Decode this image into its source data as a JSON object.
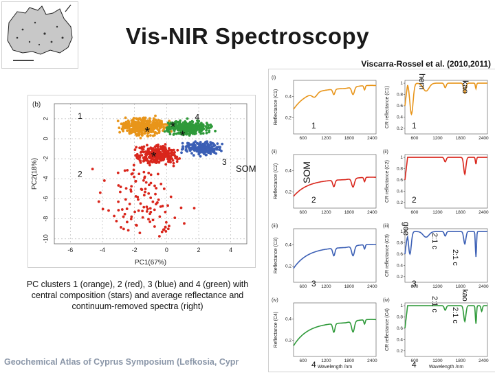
{
  "slide": {
    "title": "Vis-NIR Spectroscopy",
    "citation": "Viscarra-Rossel et al. (2010,2011)",
    "caption": "PC clusters 1 (orange), 2 (red), 3 (blue) and 4 (green) with central composition (stars) and average reflectance and continuum-removed spectra (right)",
    "footer": "Geochemical Atlas of Cyprus Symposium (Lefkosia, Cypr",
    "som_label": "SOM"
  },
  "colors": {
    "orange": "#e8951a",
    "red": "#d9261c",
    "blue": "#3b5fb5",
    "green": "#2f9a3a"
  },
  "chart_data": [
    {
      "type": "scatter",
      "panel": "(b)",
      "xlabel": "PC1(67%)",
      "ylabel": "PC2(18%)",
      "xlim": [
        -7,
        5
      ],
      "ylim": [
        -10.5,
        3.5
      ],
      "x_ticks": [
        "-6",
        "-4",
        "-2",
        "0",
        "2",
        "4"
      ],
      "y_ticks": [
        "2",
        "0",
        "-2",
        "-4",
        "-6",
        "-8",
        "-10"
      ],
      "cluster_labels": [
        "1",
        "2",
        "3",
        "4"
      ],
      "centroids": [
        [
          -1.2,
          0.7
        ],
        [
          -0.8,
          -1.8
        ],
        [
          1.0,
          0.3
        ],
        [
          0.4,
          1.2
        ]
      ]
    },
    {
      "type": "line",
      "panels": [
        "(i)",
        "(ii)",
        "(iii)",
        "(iv)"
      ],
      "left_ylabels": [
        "Reflectance (C1)",
        "Reflectance (C2)",
        "Reflectance (C3)",
        "Reflectance (C4)"
      ],
      "right_ylabels": [
        "CR reflectance (C1)",
        "CR reflectance (C2)",
        "CR reflectance (C3)",
        "CR reflectance (C4)"
      ],
      "xlabel": "Wavelength /nm",
      "x_ticks": [
        "600",
        "1200",
        "1800",
        "2400"
      ],
      "left_y_ticks": [
        "0.2",
        "0.4"
      ],
      "right_y_ticks": [
        "0.2",
        "0.4",
        "0.6",
        "0.8",
        "1"
      ],
      "cluster_numbers": [
        "1",
        "2",
        "3",
        "4"
      ],
      "annotations_c1": [
        "hem",
        "kao"
      ],
      "annotations_c3": [
        "goe",
        "2:1 c",
        "2:1 c"
      ],
      "annotations_c4": [
        "2:1 c",
        "kao",
        "2:1 c"
      ]
    }
  ]
}
